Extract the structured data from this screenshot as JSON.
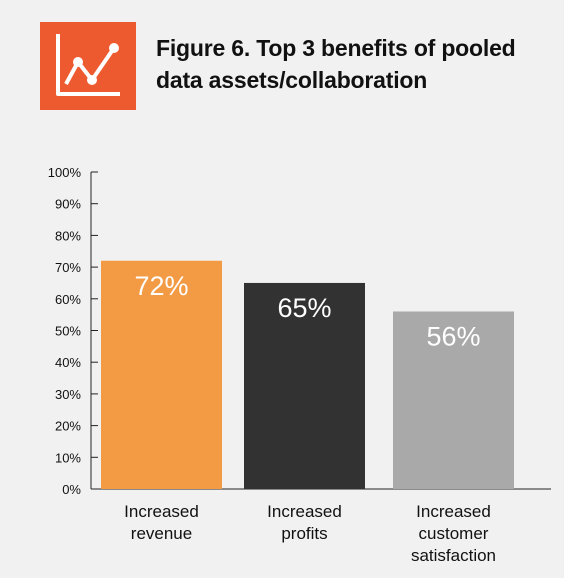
{
  "header": {
    "icon": "line-chart-icon",
    "title": "Figure 6. Top 3 benefits of pooled data assets/collaboration",
    "accent_color": "#ee5a30"
  },
  "chart_data": {
    "type": "bar",
    "title": "Figure 6. Top 3 benefits of pooled data assets/collaboration",
    "xlabel": "",
    "ylabel": "",
    "categories": [
      [
        "Increased",
        "revenue"
      ],
      [
        "Increased",
        "profits"
      ],
      [
        "Increased",
        "customer",
        "satisfaction"
      ]
    ],
    "values": [
      72,
      65,
      56
    ],
    "data_labels": [
      "72%",
      "65%",
      "56%"
    ],
    "colors": [
      "#f39a45",
      "#323232",
      "#a9a9a9"
    ],
    "ylim": [
      0,
      100
    ],
    "yticks": [
      0,
      10,
      20,
      30,
      40,
      50,
      60,
      70,
      80,
      90,
      100
    ],
    "ytick_labels": [
      "0%",
      "10%",
      "20%",
      "30%",
      "40%",
      "50%",
      "60%",
      "70%",
      "80%",
      "90%",
      "100%"
    ],
    "grid": false,
    "legend": "none"
  }
}
